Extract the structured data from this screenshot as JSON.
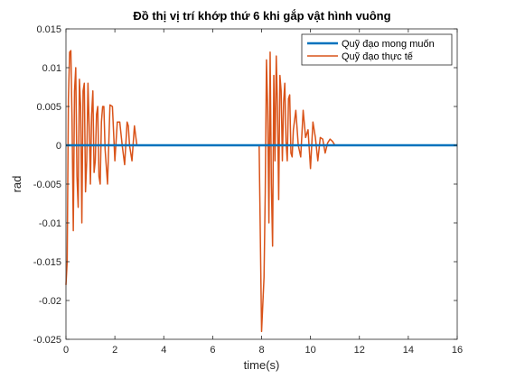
{
  "chart_data": {
    "type": "line",
    "title": "Đồ thị vị trí khớp thứ 6 khi gắp vật hình vuông",
    "xlabel": "time(s)",
    "ylabel": "rad",
    "xlim": [
      0,
      16
    ],
    "ylim": [
      -0.025,
      0.015
    ],
    "xticks": [
      0,
      2,
      4,
      6,
      8,
      10,
      12,
      14,
      16
    ],
    "xtick_labels": [
      "0",
      "2",
      "4",
      "6",
      "8",
      "10",
      "12",
      "14",
      "16"
    ],
    "yticks": [
      0.015,
      0.01,
      0.005,
      0,
      -0.005,
      -0.01,
      -0.015,
      -0.02,
      -0.025
    ],
    "ytick_labels": [
      "0.015",
      "0.01",
      "0.005",
      "0",
      "-0.005",
      "-0.01",
      "-0.015",
      "-0.02",
      "-0.025"
    ],
    "grid": false,
    "legend_position": "top-right",
    "series": [
      {
        "name": "Quỹ đạo mong muốn",
        "color": "#0072BD",
        "line_width": 2.5,
        "x": [
          0,
          16
        ],
        "y": [
          0,
          0
        ]
      },
      {
        "name": "Quỹ đạo thực tế",
        "color": "#D95319",
        "line_width": 1.5,
        "x": [
          0,
          0.05,
          0.1,
          0.15,
          0.2,
          0.25,
          0.3,
          0.35,
          0.4,
          0.45,
          0.5,
          0.55,
          0.6,
          0.65,
          0.7,
          0.75,
          0.8,
          0.85,
          0.9,
          0.95,
          1.0,
          1.05,
          1.1,
          1.15,
          1.2,
          1.25,
          1.3,
          1.35,
          1.4,
          1.45,
          1.5,
          1.55,
          1.6,
          1.7,
          1.8,
          1.9,
          2.0,
          2.1,
          2.2,
          2.3,
          2.4,
          2.5,
          2.55,
          2.6,
          2.7,
          2.8,
          2.9,
          3.0,
          4,
          5,
          6,
          7,
          7.5,
          7.9,
          8.0,
          8.1,
          8.15,
          8.2,
          8.25,
          8.3,
          8.35,
          8.4,
          8.45,
          8.5,
          8.55,
          8.6,
          8.65,
          8.7,
          8.75,
          8.8,
          8.85,
          8.9,
          8.95,
          9.0,
          9.05,
          9.1,
          9.15,
          9.2,
          9.25,
          9.3,
          9.4,
          9.5,
          9.6,
          9.7,
          9.8,
          9.9,
          10.0,
          10.1,
          10.2,
          10.3,
          10.4,
          10.5,
          10.6,
          10.7,
          10.8,
          10.9,
          11.0,
          11.5,
          12,
          13,
          14,
          15,
          16
        ],
        "y": [
          -0.018,
          -0.015,
          0.006,
          0.012,
          0.0122,
          0.003,
          -0.011,
          0.007,
          0.01,
          -0.004,
          -0.008,
          0.0085,
          0.005,
          -0.01,
          0.007,
          0.008,
          -0.006,
          -0.002,
          0.008,
          0.0025,
          -0.005,
          0.004,
          0.007,
          -0.0035,
          -0.002,
          0.004,
          0.005,
          -0.004,
          -0.005,
          0.003,
          0.005,
          0.005,
          -0.0005,
          -0.005,
          0.0052,
          0.005,
          -0.002,
          0.003,
          0.003,
          0.0,
          -0.0025,
          0.003,
          0.0025,
          0.0,
          -0.002,
          0.0025,
          0.0,
          0.0,
          0.0,
          0.0,
          0.0,
          0.0,
          0.0,
          0.0,
          -0.024,
          -0.017,
          -0.006,
          0.011,
          0.0045,
          -0.01,
          0.012,
          -0.005,
          -0.013,
          0.009,
          -0.002,
          0.0115,
          0.005,
          -0.007,
          0.009,
          0.007,
          -0.002,
          0.0055,
          0.008,
          0.0005,
          -0.002,
          0.006,
          0.0065,
          -0.001,
          -0.0015,
          0.002,
          0.0045,
          0.0,
          -0.0015,
          0.0045,
          0.001,
          0.002,
          -0.003,
          0.003,
          0.001,
          -0.002,
          0.001,
          0.0008,
          -0.001,
          0.0003,
          0.0008,
          0.0005,
          0.0,
          0.0,
          0.0,
          0.0,
          0.0,
          0.0,
          0.0
        ]
      }
    ]
  }
}
